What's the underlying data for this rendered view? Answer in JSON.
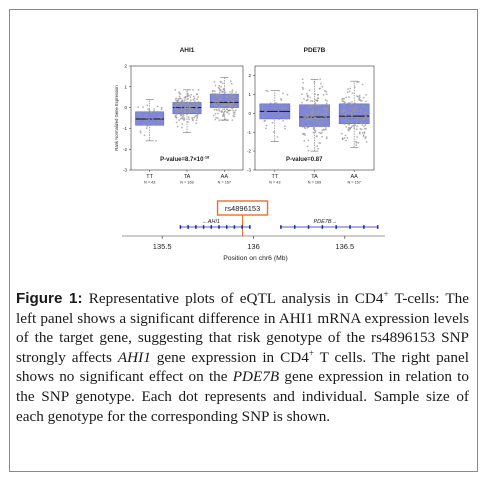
{
  "chart_data": [
    {
      "type": "box",
      "title": "AHI1",
      "ylabel": "Rank Normalized Gene Expression",
      "ylim": [
        -3,
        2
      ],
      "yticks": [
        -3,
        -2,
        -1,
        0,
        1,
        2
      ],
      "categories": [
        "TT",
        "TA",
        "AA"
      ],
      "sample_sizes": [
        "N = 43",
        "N = 169",
        "N = 157"
      ],
      "boxes": [
        {
          "q1": -0.85,
          "median": -0.55,
          "q3": -0.2,
          "whisker_low": -1.6,
          "whisker_high": 0.4
        },
        {
          "q1": -0.3,
          "median": 0.0,
          "q3": 0.25,
          "whisker_low": -1.2,
          "whisker_high": 0.85
        },
        {
          "q1": 0.0,
          "median": 0.25,
          "q3": 0.65,
          "whisker_low": -0.6,
          "whisker_high": 1.45
        }
      ],
      "pvalue_label": "P-value=8.7×10",
      "pvalue_exponent": "-18"
    },
    {
      "type": "box",
      "title": "PDE7B",
      "ylim": [
        -3,
        2.5
      ],
      "yticks": [
        -3,
        -2,
        -1,
        0,
        1,
        2
      ],
      "categories": [
        "TT",
        "TA",
        "AA"
      ],
      "sample_sizes": [
        "N = 43",
        "N = 169",
        "N = 157"
      ],
      "boxes": [
        {
          "q1": -0.3,
          "median": 0.1,
          "q3": 0.5,
          "whisker_low": -1.5,
          "whisker_high": 1.2
        },
        {
          "q1": -0.7,
          "median": -0.2,
          "q3": 0.45,
          "whisker_low": -2.0,
          "whisker_high": 1.8
        },
        {
          "q1": -0.55,
          "median": -0.15,
          "q3": 0.5,
          "whisker_low": -1.8,
          "whisker_high": 1.7
        }
      ],
      "pvalue_label": "P-value=0.87"
    }
  ],
  "locus": {
    "snp": "rs4896153",
    "snp_position": 135.94,
    "genes": [
      {
        "name": "AHI1",
        "start": 135.6,
        "end": 135.98,
        "strand": "-"
      },
      {
        "name": "PDE7B",
        "start": 136.15,
        "end": 136.68,
        "strand": "+"
      }
    ],
    "ticks": [
      "135.5",
      "136",
      "136.5"
    ],
    "xlabel": "Position on chr6 (Mb)",
    "xlim": [
      135.28,
      136.72
    ]
  },
  "colors": {
    "box_fill": "#7f86db",
    "points": "#9a9a9a",
    "snp_highlight": "#e8702a",
    "gene_blue": "#1a2fb5"
  },
  "caption": {
    "label": "Figure 1:",
    "line1_text": " Representative plots of eQTL analysis in CD4",
    "line1_sup": "+",
    "line1_tail": " T-cells: The left panel shows a significant difference in AHI1 mRNA expression levels of the target gene, suggesting that risk genotype of the rs4896153 SNP strongly affects ",
    "gene1": "AHI1",
    "mid_text": " gene expression in CD4",
    "mid_sup": "+",
    "mid_tail": " T cells. The right panel shows no significant effect on the ",
    "gene2": "PDE7B",
    "end_text": " gene expression in relation to the SNP genotype. Each dot represents and individual. Sample size of each genotype for the corresponding SNP is shown."
  }
}
